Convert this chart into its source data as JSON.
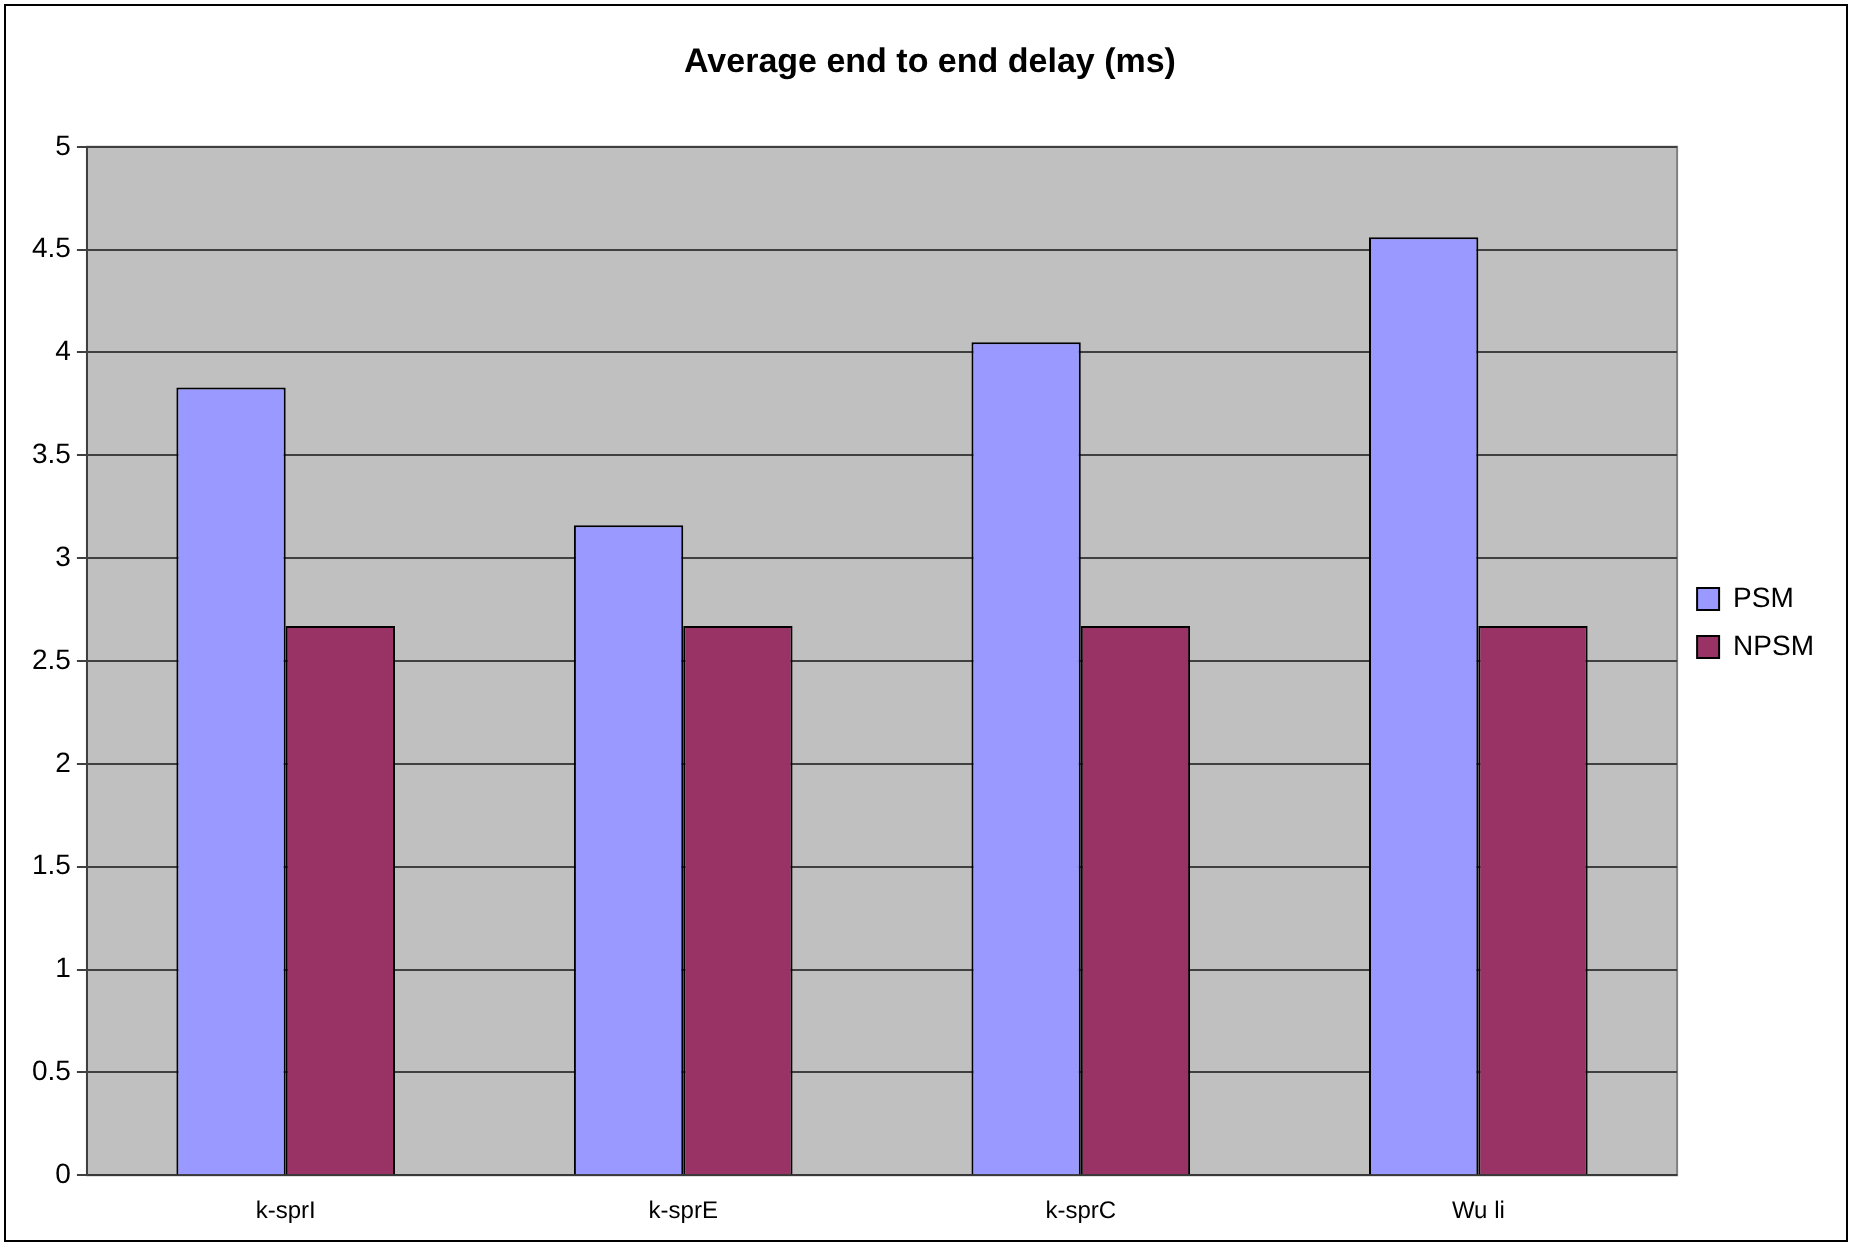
{
  "chart_data": {
    "type": "bar",
    "title": "Average end to end delay (ms)",
    "categories": [
      "k-sprI",
      "k-sprE",
      "k-sprC",
      "Wu li"
    ],
    "series": [
      {
        "name": "PSM",
        "color": "#9999ff",
        "values": [
          3.83,
          3.16,
          4.05,
          4.56
        ]
      },
      {
        "name": "NPSM",
        "color": "#993366",
        "values": [
          2.67,
          2.67,
          2.67,
          2.67
        ]
      }
    ],
    "ylim": [
      0,
      5
    ],
    "yticks": [
      0,
      0.5,
      1,
      1.5,
      2,
      2.5,
      3,
      3.5,
      4,
      4.5,
      5
    ],
    "grid": "y",
    "legend": "right"
  }
}
